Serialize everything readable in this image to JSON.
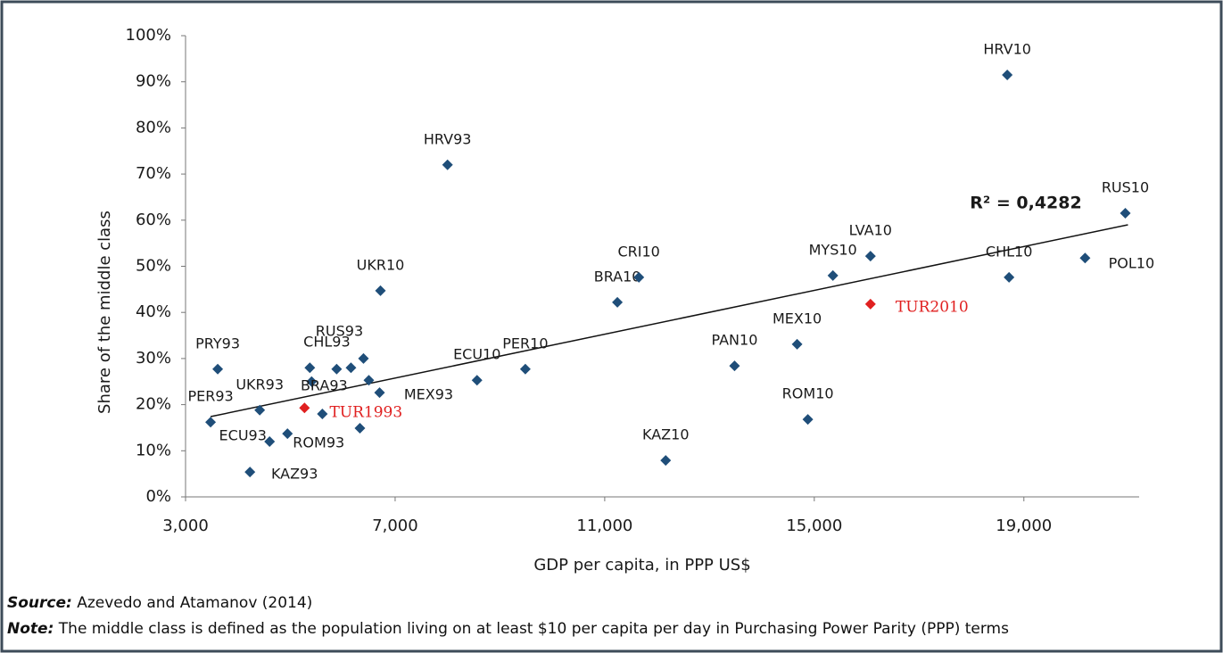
{
  "chart_data": {
    "type": "scatter",
    "y_label": "Share of the middle class",
    "x_label": "GDP per capita, in PPP US$",
    "annotation": "R² = 0,4282",
    "xlim": [
      3000,
      21200
    ],
    "ylim": [
      0,
      100
    ],
    "xticks": [
      {
        "value": 3000,
        "label": "3,000"
      },
      {
        "value": 7000,
        "label": "7,000"
      },
      {
        "value": 11000,
        "label": "11,000"
      },
      {
        "value": 15000,
        "label": "15,000"
      },
      {
        "value": 19000,
        "label": "19,000"
      }
    ],
    "yticks": [
      {
        "value": 0,
        "label": "0%"
      },
      {
        "value": 10,
        "label": "10%"
      },
      {
        "value": 20,
        "label": "20%"
      },
      {
        "value": 30,
        "label": "30%"
      },
      {
        "value": 40,
        "label": "40%"
      },
      {
        "value": 50,
        "label": "50%"
      },
      {
        "value": 60,
        "label": "60%"
      },
      {
        "value": 70,
        "label": "70%"
      },
      {
        "value": 80,
        "label": "80%"
      },
      {
        "value": 90,
        "label": "90%"
      },
      {
        "value": 100,
        "label": "100%"
      }
    ],
    "series": [
      {
        "color": "#1f4e79",
        "labels": [
          "PER93",
          "PRY93",
          "KAZ93",
          "UKR93",
          "ECU93",
          "ROM93",
          null,
          "BRA93",
          null,
          "CHL93",
          null,
          "RUS93",
          null,
          null,
          "MEX93",
          "UKR10",
          "HRV93",
          "ECU10",
          "PER10",
          "BRA10",
          "CRI10",
          "KAZ10",
          "PAN10",
          "MEX10",
          "ROM10",
          "MYS10",
          "LVA10",
          "HRV10",
          "CHL10",
          "POL10",
          "RUS10"
        ],
        "x": [
          3478,
          3614,
          4229,
          4416,
          4604,
          4945,
          5372,
          5406,
          5611,
          5884,
          6157,
          6396,
          6498,
          6328,
          6703,
          6720,
          8000,
          8563,
          9485,
          11242,
          11652,
          12164,
          13478,
          14672,
          14877,
          15355,
          16072,
          18683,
          18717,
          20168,
          20936
        ],
        "values": [
          16.2,
          27.7,
          5.4,
          18.8,
          12.0,
          13.7,
          28.0,
          25.0,
          18.0,
          27.7,
          28.0,
          30.0,
          25.3,
          14.9,
          22.6,
          44.7,
          72.0,
          25.3,
          27.7,
          42.2,
          47.6,
          7.9,
          28.4,
          33.1,
          16.8,
          48.0,
          52.2,
          91.5,
          47.6,
          51.8,
          61.5
        ]
      },
      {
        "color": "#e02020",
        "labels": [
          "TUR1993",
          "TUR2010"
        ],
        "x": [
          5270,
          16072
        ],
        "values": [
          19.3,
          41.8
        ]
      }
    ],
    "trendline": {
      "color": "#111111",
      "x": [
        3478,
        20986
      ],
      "y": [
        17.4,
        59.0
      ]
    },
    "source": {
      "label": "Source:",
      "text": "Azevedo and Atamanov (2014)"
    },
    "note": {
      "label": "Note:",
      "text": "The middle class is defined as the population living on at least $10 per capita per day in Purchasing Power Parity (PPP) terms"
    }
  }
}
